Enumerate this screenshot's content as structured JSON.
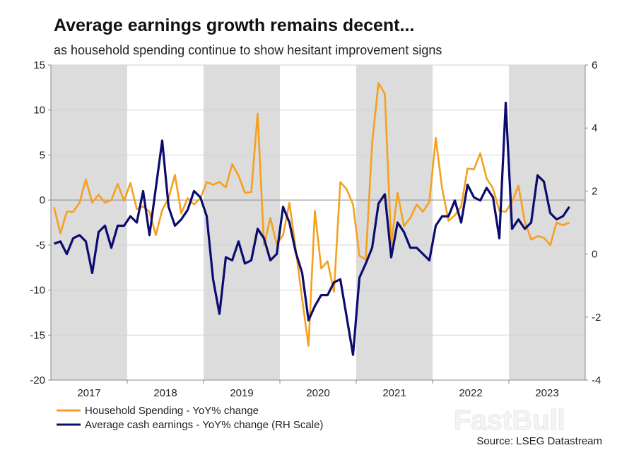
{
  "chart_data": {
    "type": "line",
    "title": "Average earnings growth remains decent...",
    "subtitle": "as household spending continue to show hesitant improvement signs",
    "x_start": "2017-01",
    "x_frequency": "monthly",
    "x_tick_labels": [
      "2017",
      "2018",
      "2019",
      "2020",
      "2021",
      "2022",
      "2023"
    ],
    "shaded_years": [
      "2017",
      "2019",
      "2021",
      "2023"
    ],
    "ylim_left": [
      -20,
      15
    ],
    "yticks_left": [
      -20,
      -15,
      -10,
      -5,
      0,
      5,
      10,
      15
    ],
    "ylim_right": [
      -4,
      6
    ],
    "yticks_right": [
      -4,
      -2,
      0,
      2,
      4,
      6
    ],
    "grid": true,
    "legend_position": "bottom-left",
    "series": [
      {
        "name": "Household Spending - YoY% change",
        "axis": "left",
        "color": "#f5a01e",
        "values": [
          -0.8,
          -3.7,
          -1.3,
          -1.3,
          -0.3,
          2.3,
          -0.3,
          0.6,
          -0.3,
          0,
          1.8,
          -0.1,
          1.9,
          -1.0,
          -0.7,
          -1.3,
          -3.9,
          -1.1,
          0.2,
          2.8,
          -1.5,
          0.2,
          -0.5,
          0.2,
          2.0,
          1.7,
          2.0,
          1.4,
          4.0,
          2.7,
          0.8,
          0.9,
          9.6,
          -5.0,
          -2.0,
          -4.9,
          -3.9,
          -0.3,
          -5.5,
          -11.0,
          -16.2,
          -1.2,
          -7.6,
          -6.8,
          -10.2,
          2.0,
          1.2,
          -0.5,
          -6.2,
          -6.6,
          6.3,
          13.0,
          11.8,
          -5.0,
          0.8,
          -2.9,
          -2.0,
          -0.5,
          -1.3,
          -0.2,
          6.9,
          1.3,
          -2.3,
          -1.7,
          -0.7,
          3.5,
          3.4,
          5.2,
          2.4,
          1.3,
          -1.2,
          -1.3,
          -0.2,
          1.6,
          -2.4,
          -4.4,
          -4.0,
          -4.2,
          -5.0,
          -2.5,
          -2.8,
          -2.5
        ]
      },
      {
        "name": "Average cash earnings - YoY% change (RH Scale)",
        "axis": "right",
        "color": "#0c0c6e",
        "values": [
          0.33,
          0.4,
          0.0,
          0.5,
          0.6,
          0.4,
          -0.6,
          0.7,
          0.9,
          0.2,
          0.9,
          0.9,
          1.2,
          1.0,
          2.0,
          0.6,
          2.1,
          3.6,
          1.5,
          0.9,
          1.1,
          1.4,
          2.0,
          1.8,
          1.2,
          -0.8,
          -1.9,
          -0.1,
          -0.2,
          0.4,
          -0.3,
          -0.2,
          0.8,
          0.5,
          -0.2,
          0.0,
          1.5,
          1.0,
          0.05,
          -0.6,
          -2.1,
          -1.65,
          -1.3,
          -1.3,
          -0.9,
          -0.8,
          -2.0,
          -3.2,
          -0.75,
          -0.3,
          0.2,
          1.6,
          1.9,
          -0.1,
          1.0,
          0.7,
          0.2,
          0.2,
          0.0,
          -0.2,
          0.9,
          1.2,
          1.2,
          1.7,
          1.0,
          2.2,
          1.8,
          1.7,
          2.1,
          1.8,
          0.5,
          4.8,
          0.8,
          1.1,
          0.8,
          1.0,
          2.5,
          2.3,
          1.3,
          1.1,
          1.2,
          1.5
        ]
      }
    ],
    "source": "Source: LSEG Datastream"
  },
  "watermark": "FastBull"
}
